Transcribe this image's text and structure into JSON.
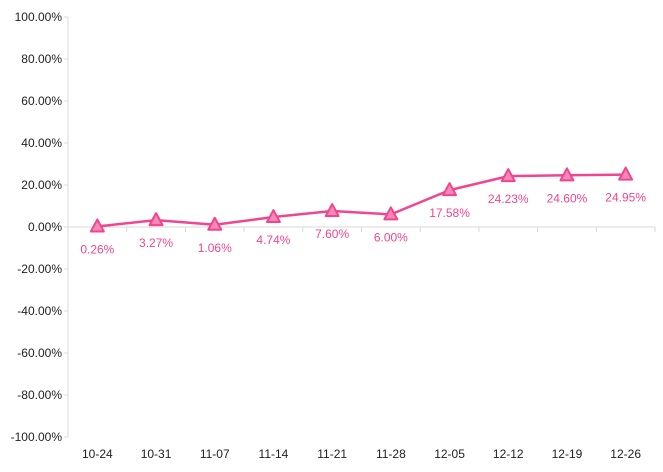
{
  "chart_data": {
    "type": "line",
    "title": "",
    "xlabel": "",
    "ylabel": "",
    "categories": [
      "10-24",
      "10-31",
      "11-07",
      "11-14",
      "11-21",
      "11-28",
      "12-05",
      "12-12",
      "12-19",
      "12-26"
    ],
    "series": [
      {
        "values": [
          0.26,
          3.27,
          1.06,
          4.74,
          7.6,
          6.0,
          17.58,
          24.23,
          24.6,
          24.95
        ],
        "data_labels": [
          "0.26%",
          "3.27%",
          "1.06%",
          "4.74%",
          "7.60%",
          "6.00%",
          "17.58%",
          "24.23%",
          "24.60%",
          "24.95%"
        ],
        "color": "#f0468f",
        "marker": "triangle"
      }
    ],
    "ylim": [
      -100,
      100
    ],
    "y_ticks": [
      100,
      80,
      60,
      40,
      20,
      0,
      -20,
      -40,
      -60,
      -80,
      -100
    ],
    "y_tick_labels": [
      "100.00%",
      "80.00%",
      "60.00%",
      "40.00%",
      "20.00%",
      "0.00%",
      "-20.00%",
      "-40.00%",
      "-60.00%",
      "-80.00%",
      "-100.00%"
    ],
    "grid": false,
    "legend": "none"
  }
}
